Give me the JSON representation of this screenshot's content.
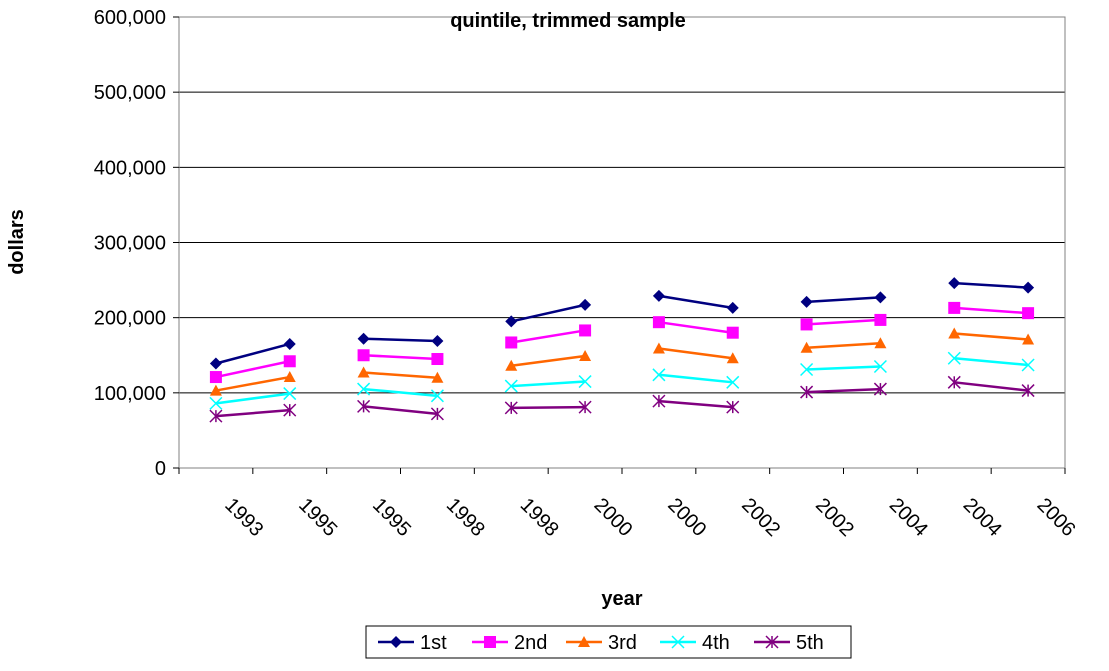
{
  "chart_data": {
    "type": "line",
    "title": "quintile, trimmed sample",
    "xlabel": "year",
    "ylabel": "dollars",
    "ylim": [
      0,
      600000
    ],
    "yticks": [
      "0",
      "100,000",
      "200,000",
      "300,000",
      "400,000",
      "500,000",
      "600,000"
    ],
    "categories": [
      "1993",
      "1995",
      "1995",
      "1998",
      "1998",
      "2000",
      "2000",
      "2002",
      "2002",
      "2004",
      "2004",
      "2006"
    ],
    "segments": [
      [
        0,
        1
      ],
      [
        2,
        3
      ],
      [
        4,
        5
      ],
      [
        6,
        7
      ],
      [
        8,
        9
      ],
      [
        10,
        11
      ]
    ],
    "grid": true,
    "legend_position": "bottom",
    "series": [
      {
        "name": "1st",
        "color": "#000080",
        "marker": "diamond",
        "values": [
          139000,
          165000,
          172000,
          169000,
          195000,
          217000,
          229000,
          213000,
          221000,
          227000,
          246000,
          240000
        ]
      },
      {
        "name": "2nd",
        "color": "#FF00FF",
        "marker": "square",
        "values": [
          121000,
          142000,
          150000,
          145000,
          167000,
          183000,
          194000,
          180000,
          191000,
          197000,
          213000,
          206000
        ]
      },
      {
        "name": "3rd",
        "color": "#FF6600",
        "marker": "triangle",
        "values": [
          103000,
          121000,
          127000,
          120000,
          136000,
          149000,
          159000,
          146000,
          160000,
          166000,
          179000,
          171000
        ]
      },
      {
        "name": "4th",
        "color": "#00FFFF",
        "marker": "x",
        "values": [
          86000,
          99000,
          105000,
          96000,
          109000,
          115000,
          124000,
          114000,
          131000,
          135000,
          146000,
          137000
        ]
      },
      {
        "name": "5th",
        "color": "#800080",
        "marker": "asterisk",
        "values": [
          69000,
          77000,
          82000,
          72000,
          80000,
          81000,
          89000,
          81000,
          101000,
          105000,
          114000,
          103000
        ]
      }
    ]
  }
}
